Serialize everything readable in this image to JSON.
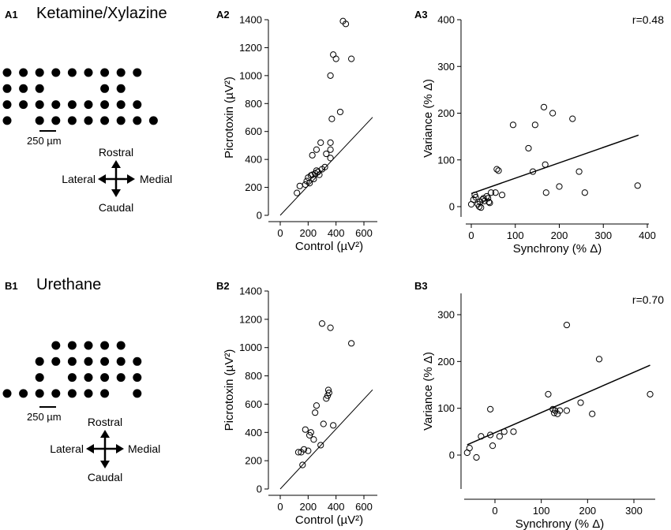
{
  "figure": {
    "row_a": {
      "panel_labels": [
        "A1",
        "A2",
        "A3"
      ],
      "title": "Ketamine/Xylazine",
      "scale_bar": "250 µm",
      "directions": {
        "rostral": "Rostral",
        "caudal": "Caudal",
        "lateral": "Lateral",
        "medial": "Medial"
      }
    },
    "row_b": {
      "panel_labels": [
        "B1",
        "B2",
        "B3"
      ],
      "title": "Urethane",
      "scale_bar": "250 µm",
      "directions": {
        "rostral": "Rostral",
        "caudal": "Caudal",
        "lateral": "Lateral",
        "medial": "Medial"
      }
    }
  },
  "electrode_arrays": {
    "a1": {
      "rows": [
        [
          0,
          1,
          2,
          3,
          4,
          5,
          6,
          7,
          8
        ],
        [
          0,
          1,
          2,
          6,
          7
        ],
        [
          0,
          1,
          2,
          3,
          4,
          5,
          6,
          7,
          8
        ],
        [
          0,
          2,
          3,
          4,
          5,
          6,
          7,
          8,
          9
        ]
      ]
    },
    "b1": {
      "rows": [
        [
          3,
          4,
          5,
          6,
          7
        ],
        [
          2,
          3,
          4,
          5,
          6,
          7,
          8
        ],
        [
          2,
          4,
          5,
          6,
          7,
          8
        ],
        [
          0,
          1,
          2,
          3,
          4,
          5,
          6,
          8
        ]
      ]
    }
  },
  "chart_data": [
    {
      "id": "A2",
      "type": "scatter",
      "xlabel": "Control (µV²)",
      "ylabel": "Picrotoxin (µV²)",
      "xlim": [
        -100,
        700
      ],
      "ylim": [
        0,
        1400
      ],
      "xticks": [
        0,
        200,
        400,
        600
      ],
      "xtick_labels": [
        "0",
        "200",
        "400",
        "600"
      ],
      "yticks": [
        0,
        200,
        400,
        600,
        800,
        1000,
        1200,
        1400
      ],
      "ytick_labels": [
        "0",
        "200",
        "400",
        "600",
        "800",
        "1000",
        "1200",
        "1400"
      ],
      "identity_line": true,
      "points": [
        [
          120,
          160
        ],
        [
          140,
          210
        ],
        [
          180,
          220
        ],
        [
          190,
          245
        ],
        [
          200,
          270
        ],
        [
          210,
          230
        ],
        [
          220,
          285
        ],
        [
          230,
          290
        ],
        [
          240,
          260
        ],
        [
          250,
          300
        ],
        [
          260,
          320
        ],
        [
          270,
          310
        ],
        [
          280,
          290
        ],
        [
          300,
          330
        ],
        [
          320,
          345
        ],
        [
          260,
          470
        ],
        [
          230,
          430
        ],
        [
          290,
          520
        ],
        [
          330,
          440
        ],
        [
          360,
          520
        ],
        [
          360,
          410
        ],
        [
          360,
          470
        ],
        [
          370,
          690
        ],
        [
          360,
          1000
        ],
        [
          380,
          1150
        ],
        [
          400,
          1120
        ],
        [
          430,
          740
        ],
        [
          450,
          1390
        ],
        [
          470,
          1370
        ],
        [
          510,
          1120
        ]
      ],
      "r": null
    },
    {
      "id": "A3",
      "type": "scatter",
      "xlabel": "Synchrony (% Δ)",
      "ylabel": "Variance (% Δ)",
      "xlim": [
        -10,
        400
      ],
      "ylim": [
        -25,
        400
      ],
      "xticks": [
        0,
        100,
        200,
        300,
        400
      ],
      "xtick_labels": [
        "0",
        "100",
        "200",
        "300",
        "400"
      ],
      "yticks": [
        0,
        100,
        200,
        300,
        400
      ],
      "ytick_labels": [
        "0",
        "100",
        "200",
        "300",
        "400"
      ],
      "fit_line": {
        "x0": 0,
        "y0": 28,
        "x1": 380,
        "y1": 153
      },
      "points": [
        [
          0,
          5
        ],
        [
          5,
          15
        ],
        [
          8,
          25
        ],
        [
          10,
          20
        ],
        [
          15,
          5
        ],
        [
          18,
          0
        ],
        [
          20,
          10
        ],
        [
          22,
          -2
        ],
        [
          25,
          15
        ],
        [
          28,
          18
        ],
        [
          30,
          12
        ],
        [
          35,
          22
        ],
        [
          38,
          18
        ],
        [
          40,
          10
        ],
        [
          42,
          8
        ],
        [
          45,
          30
        ],
        [
          55,
          30
        ],
        [
          58,
          80
        ],
        [
          62,
          77
        ],
        [
          70,
          25
        ],
        [
          95,
          175
        ],
        [
          130,
          125
        ],
        [
          140,
          75
        ],
        [
          145,
          175
        ],
        [
          165,
          213
        ],
        [
          168,
          90
        ],
        [
          170,
          30
        ],
        [
          185,
          200
        ],
        [
          200,
          43
        ],
        [
          230,
          188
        ],
        [
          245,
          75
        ],
        [
          258,
          30
        ],
        [
          378,
          45
        ]
      ],
      "r": "r=0.48"
    },
    {
      "id": "B2",
      "type": "scatter",
      "xlabel": "Control (µV²)",
      "ylabel": "Picrotoxin (µV²)",
      "xlim": [
        -100,
        700
      ],
      "ylim": [
        0,
        1400
      ],
      "xticks": [
        0,
        200,
        400,
        600
      ],
      "xtick_labels": [
        "0",
        "200",
        "400",
        "600"
      ],
      "yticks": [
        0,
        200,
        400,
        600,
        800,
        1000,
        1200,
        1400
      ],
      "ytick_labels": [
        "0",
        "200",
        "400",
        "600",
        "800",
        "1000",
        "1200",
        "1400"
      ],
      "identity_line": true,
      "points": [
        [
          130,
          260
        ],
        [
          150,
          260
        ],
        [
          160,
          170
        ],
        [
          170,
          280
        ],
        [
          180,
          420
        ],
        [
          200,
          270
        ],
        [
          210,
          380
        ],
        [
          220,
          400
        ],
        [
          240,
          350
        ],
        [
          250,
          540
        ],
        [
          260,
          590
        ],
        [
          290,
          310
        ],
        [
          300,
          1170
        ],
        [
          310,
          460
        ],
        [
          330,
          640
        ],
        [
          340,
          660
        ],
        [
          345,
          700
        ],
        [
          350,
          680
        ],
        [
          360,
          1140
        ],
        [
          380,
          450
        ],
        [
          510,
          1030
        ]
      ],
      "r": null
    },
    {
      "id": "B3",
      "type": "scatter",
      "xlabel": "Synchrony (% Δ)",
      "ylabel": "Variance (% Δ)",
      "xlim": [
        -70,
        350
      ],
      "ylim": [
        -30,
        340
      ],
      "xticks": [
        0,
        100,
        200,
        300
      ],
      "xtick_labels": [
        "0",
        "100",
        "200",
        "300"
      ],
      "yticks": [
        0,
        100,
        200,
        300
      ],
      "ytick_labels": [
        "0",
        "100",
        "200",
        "300"
      ],
      "fit_line": {
        "x0": -60,
        "y0": 22,
        "x1": 335,
        "y1": 192
      },
      "points": [
        [
          -60,
          5
        ],
        [
          -55,
          15
        ],
        [
          -40,
          -5
        ],
        [
          -30,
          40
        ],
        [
          -10,
          98
        ],
        [
          -10,
          43
        ],
        [
          -5,
          20
        ],
        [
          10,
          40
        ],
        [
          20,
          50
        ],
        [
          40,
          50
        ],
        [
          115,
          130
        ],
        [
          125,
          98
        ],
        [
          128,
          90
        ],
        [
          130,
          95
        ],
        [
          135,
          88
        ],
        [
          140,
          95
        ],
        [
          155,
          278
        ],
        [
          155,
          95
        ],
        [
          185,
          112
        ],
        [
          210,
          88
        ],
        [
          225,
          205
        ],
        [
          335,
          130
        ]
      ],
      "r": "r=0.70"
    }
  ]
}
